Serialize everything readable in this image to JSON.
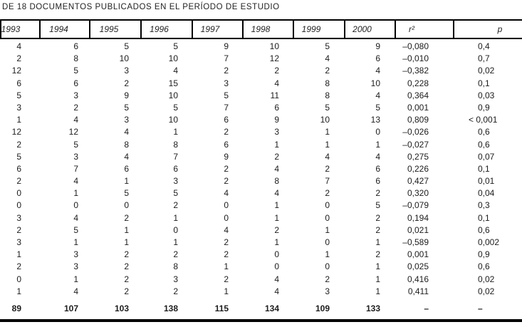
{
  "title": "DE 18 DOCUMENTOS PUBLICADOS EN EL PERÍODO DE ESTUDIO",
  "table": {
    "columns": [
      "1993",
      "1994",
      "1995",
      "1996",
      "1997",
      "1998",
      "1999",
      "2000",
      "r²",
      "p"
    ],
    "rows": [
      [
        "4",
        "6",
        "5",
        "5",
        "9",
        "10",
        "5",
        "9",
        "–0,080",
        "0,4"
      ],
      [
        "2",
        "8",
        "10",
        "10",
        "7",
        "12",
        "4",
        "6",
        "–0,010",
        "0,7"
      ],
      [
        "12",
        "5",
        "3",
        "4",
        "2",
        "2",
        "2",
        "4",
        "–0,382",
        "0,02"
      ],
      [
        "6",
        "6",
        "2",
        "15",
        "3",
        "4",
        "8",
        "10",
        "0,228",
        "0,1"
      ],
      [
        "5",
        "3",
        "9",
        "10",
        "5",
        "11",
        "8",
        "4",
        "0,364",
        "0,03"
      ],
      [
        "3",
        "2",
        "5",
        "5",
        "7",
        "6",
        "5",
        "5",
        "0,001",
        "0,9"
      ],
      [
        "1",
        "4",
        "3",
        "10",
        "6",
        "9",
        "10",
        "13",
        "0,809",
        "< 0,001"
      ],
      [
        "12",
        "12",
        "4",
        "1",
        "2",
        "3",
        "1",
        "0",
        "–0,026",
        "0,6"
      ],
      [
        "2",
        "5",
        "8",
        "8",
        "6",
        "1",
        "1",
        "1",
        "–0,027",
        "0,6"
      ],
      [
        "5",
        "3",
        "4",
        "7",
        "9",
        "2",
        "4",
        "4",
        "0,275",
        "0,07"
      ],
      [
        "6",
        "7",
        "6",
        "6",
        "2",
        "4",
        "2",
        "6",
        "0,226",
        "0,1"
      ],
      [
        "2",
        "4",
        "1",
        "3",
        "2",
        "8",
        "7",
        "6",
        "0,427",
        "0,01"
      ],
      [
        "0",
        "1",
        "5",
        "5",
        "4",
        "4",
        "2",
        "2",
        "0,320",
        "0,04"
      ],
      [
        "0",
        "0",
        "0",
        "2",
        "0",
        "1",
        "0",
        "5",
        "–0,079",
        "0,3"
      ],
      [
        "3",
        "4",
        "2",
        "1",
        "0",
        "1",
        "0",
        "2",
        "0,194",
        "0,1"
      ],
      [
        "2",
        "5",
        "1",
        "0",
        "4",
        "2",
        "1",
        "2",
        "0,021",
        "0,6"
      ],
      [
        "3",
        "1",
        "1",
        "1",
        "2",
        "1",
        "0",
        "1",
        "–0,589",
        "0,002"
      ],
      [
        "1",
        "3",
        "2",
        "2",
        "2",
        "0",
        "1",
        "2",
        "0,001",
        "0,9"
      ],
      [
        "2",
        "3",
        "2",
        "8",
        "1",
        "0",
        "0",
        "1",
        "0,025",
        "0,6"
      ],
      [
        "0",
        "1",
        "2",
        "3",
        "2",
        "4",
        "2",
        "1",
        "0,416",
        "0,02"
      ],
      [
        "1",
        "4",
        "2",
        "2",
        "1",
        "4",
        "3",
        "1",
        "0,411",
        "0,02"
      ]
    ],
    "totals": [
      "89",
      "107",
      "103",
      "138",
      "115",
      "134",
      "109",
      "133",
      "–",
      "–"
    ]
  }
}
